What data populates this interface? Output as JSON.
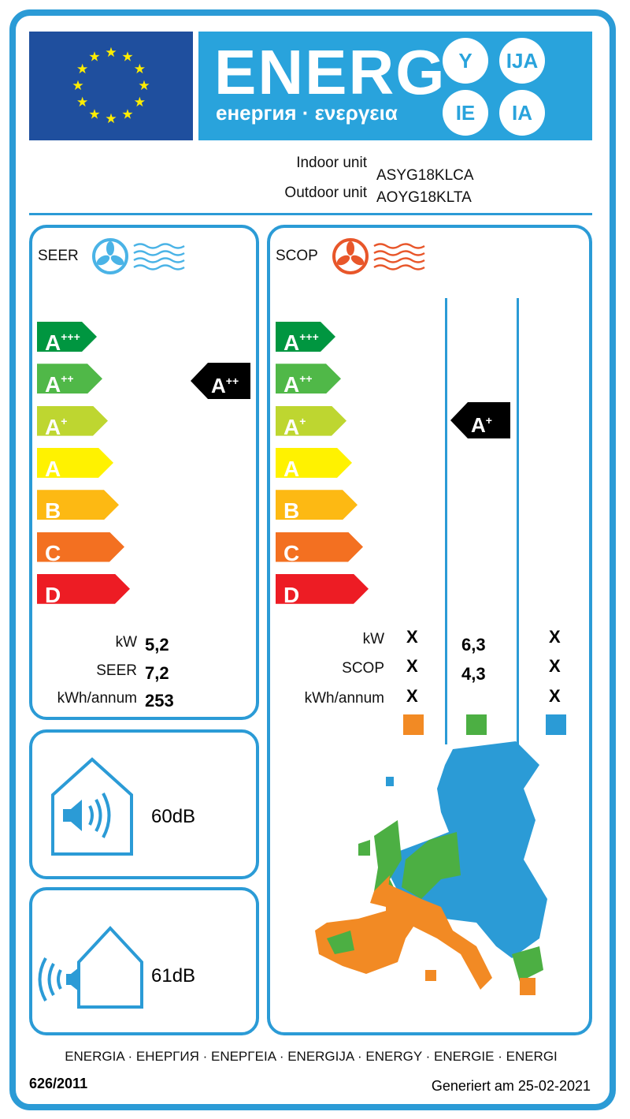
{
  "header": {
    "energy_word": "ENERG",
    "energy_subtitle": "енергия · ενεργεια",
    "suffixes": [
      "Y",
      "IJA",
      "IE",
      "IA"
    ]
  },
  "units": {
    "indoor_label": "Indoor unit",
    "indoor_model": "ASYG18KLCA",
    "outdoor_label": "Outdoor unit",
    "outdoor_model": "AOYG18KLTA"
  },
  "scale": {
    "classes": [
      {
        "letter": "A",
        "sup": "+++",
        "color": "#009640"
      },
      {
        "letter": "A",
        "sup": "++",
        "color": "#50b848"
      },
      {
        "letter": "A",
        "sup": "+",
        "color": "#bed630"
      },
      {
        "letter": "A",
        "sup": "",
        "color": "#fff200"
      },
      {
        "letter": "B",
        "sup": "",
        "color": "#fdb913"
      },
      {
        "letter": "C",
        "sup": "",
        "color": "#f37021"
      },
      {
        "letter": "D",
        "sup": "",
        "color": "#ed1c24"
      }
    ]
  },
  "seer": {
    "title": "SEER",
    "rating_letter": "A",
    "rating_sup": "++",
    "rows": [
      {
        "label": "kW",
        "value": "5,2"
      },
      {
        "label": "SEER",
        "value": "7,2"
      },
      {
        "label": "kWh/annum",
        "value": "253"
      }
    ]
  },
  "scop": {
    "title": "SCOP",
    "rating_letter": "A",
    "rating_sup": "+",
    "row_labels": [
      "kW",
      "SCOP",
      "kWh/annum"
    ],
    "columns": [
      {
        "values": [
          "X",
          "X",
          "X"
        ],
        "color": "#f28a24"
      },
      {
        "values": [
          "6,3",
          "4,3",
          ""
        ],
        "color": "#4caf43"
      },
      {
        "values": [
          "X",
          "X",
          "X"
        ],
        "color": "#2b9bd6"
      }
    ]
  },
  "noise": {
    "indoor": "60dB",
    "outdoor": "61dB"
  },
  "footer": {
    "languages": "ENERGIA · ЕНЕРГИЯ · ΕΝΕΡΓΕΙΑ · ENERGIJA · ENERGY · ENERGIE · ENERGI",
    "regulation": "626/2011",
    "generated": "Generiert am 25-02-2021"
  }
}
